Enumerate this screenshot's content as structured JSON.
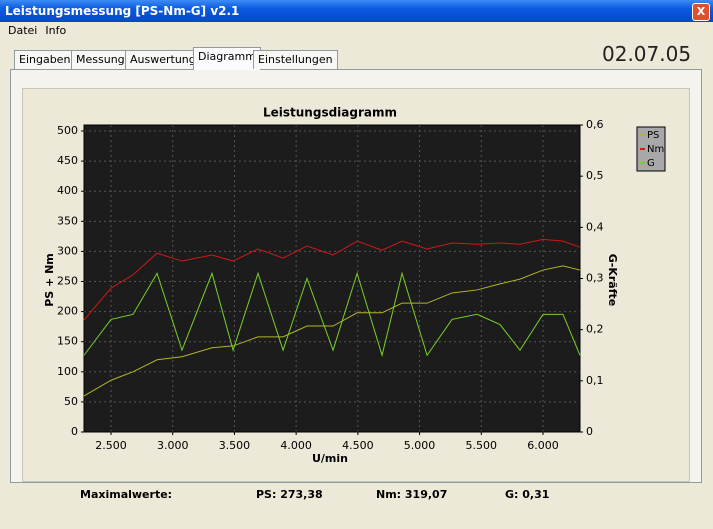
{
  "window": {
    "title": "Leistungsmessung [PS-Nm-G] v2.1",
    "close": "X"
  },
  "menu": [
    "Datei",
    "Info"
  ],
  "tabs": [
    "Eingaben",
    "Messung",
    "Auswertung",
    "Diagramm",
    "Einstellungen"
  ],
  "active_tab": 3,
  "date": "02.07.05",
  "chart_data": {
    "type": "line",
    "title": "Leistungsdiagramm",
    "xlabel": "U/min",
    "ylabel": "PS + Nm",
    "y2label": "G-Kräfte",
    "x": [
      2281,
      2500,
      2678,
      2873,
      3075,
      3318,
      3489,
      3691,
      3894,
      4088,
      4299,
      4494,
      4696,
      4858,
      5061,
      5263,
      5466,
      5652,
      5814,
      6000,
      6162,
      6300
    ],
    "series": [
      {
        "name": "PS",
        "color": "#b4b428",
        "values": [
          60,
          86,
          100,
          120,
          125,
          140,
          143,
          158,
          158,
          176,
          176,
          198,
          198,
          214,
          214,
          231,
          236,
          246,
          254,
          269,
          276,
          269
        ]
      },
      {
        "name": "Nm",
        "color": "#d01818",
        "values": [
          186,
          239,
          261,
          297,
          284,
          294,
          284,
          304,
          289,
          309,
          294,
          317,
          302,
          317,
          304,
          314,
          312,
          314,
          312,
          320,
          317,
          307
        ]
      },
      {
        "name": "G",
        "color": "#78d028",
        "axis": "y2",
        "values": [
          0.15,
          0.22,
          0.23,
          0.31,
          0.16,
          0.31,
          0.16,
          0.31,
          0.16,
          0.3,
          0.16,
          0.31,
          0.15,
          0.31,
          0.15,
          0.22,
          0.23,
          0.21,
          0.16,
          0.23,
          0.23,
          0.15
        ]
      }
    ],
    "xlim": [
      2281,
      6300
    ],
    "xticks": [
      {
        "value": 2500,
        "label": "2.500"
      },
      {
        "value": 3000,
        "label": "3.000"
      },
      {
        "value": 3500,
        "label": "3.500"
      },
      {
        "value": 4000,
        "label": "4.000"
      },
      {
        "value": 4500,
        "label": "4.500"
      },
      {
        "value": 5000,
        "label": "5.000"
      },
      {
        "value": 5500,
        "label": "5.500"
      },
      {
        "value": 6000,
        "label": "6.000"
      }
    ],
    "ylim": [
      0,
      510
    ],
    "yticks": [
      0,
      50,
      100,
      150,
      200,
      250,
      300,
      350,
      400,
      450,
      500
    ],
    "y2lim": [
      0,
      0.6
    ],
    "y2ticks": [
      0,
      {
        "value": 0.1,
        "label": "0,1"
      },
      {
        "value": 0.2,
        "label": "0,2"
      },
      {
        "value": 0.3,
        "label": "0,3"
      },
      {
        "value": 0.4,
        "label": "0,4"
      },
      {
        "value": 0.5,
        "label": "0,5"
      },
      {
        "value": 0.6,
        "label": "0,6"
      }
    ],
    "grid": true,
    "legend": "right"
  },
  "footer": {
    "label": "Maximalwerte:",
    "ps": "PS: 273,38",
    "nm": "Nm: 319,07",
    "g": "G: 0,31"
  }
}
